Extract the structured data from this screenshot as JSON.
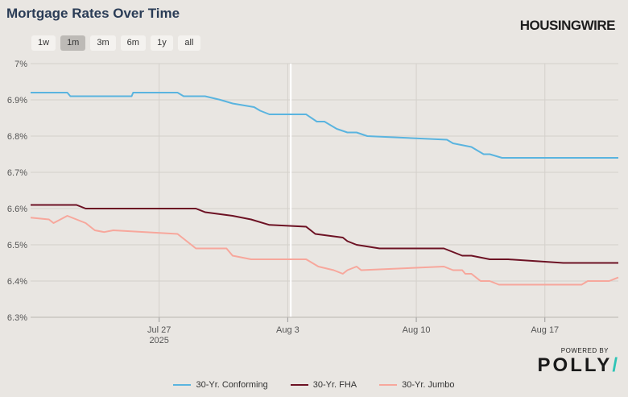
{
  "header": {
    "title": "Mortgage Rates Over Time",
    "brand": "HOUSINGWIRE"
  },
  "range_buttons": [
    {
      "label": "1w",
      "active": false
    },
    {
      "label": "1m",
      "active": true
    },
    {
      "label": "3m",
      "active": false
    },
    {
      "label": "6m",
      "active": false
    },
    {
      "label": "1y",
      "active": false
    },
    {
      "label": "all",
      "active": false
    }
  ],
  "footer": {
    "powered_by": "POWERED BY",
    "logo": "POLLY"
  },
  "chart_data": {
    "type": "line",
    "title": "Mortgage Rates Over Time",
    "ylim": [
      6.3,
      7.0
    ],
    "y_ticks": [
      {
        "value": 7.0,
        "label": "7%"
      },
      {
        "value": 6.9,
        "label": "6.9%"
      },
      {
        "value": 6.8,
        "label": "6.8%"
      },
      {
        "value": 6.7,
        "label": "6.7%"
      },
      {
        "value": 6.6,
        "label": "6.6%"
      },
      {
        "value": 6.5,
        "label": "6.5%"
      },
      {
        "value": 6.4,
        "label": "6.4%"
      },
      {
        "value": 6.3,
        "label": "6.3%"
      }
    ],
    "xlim": [
      "2025-07-20",
      "2025-08-21"
    ],
    "x_ticks": [
      {
        "date": "2025-07-27",
        "label": "Jul 27",
        "sublabel": "2025"
      },
      {
        "date": "2025-08-03",
        "label": "Aug 3",
        "sublabel": ""
      },
      {
        "date": "2025-08-10",
        "label": "Aug 10",
        "sublabel": ""
      },
      {
        "date": "2025-08-17",
        "label": "Aug 17",
        "sublabel": ""
      }
    ],
    "grid": true,
    "legend": "bottom",
    "series": [
      {
        "name": "30-Yr. Conforming",
        "color": "#5ab4df",
        "points": [
          [
            "2025-07-20",
            6.92
          ],
          [
            "2025-07-22",
            6.92
          ],
          [
            "2025-07-22T04",
            6.91
          ],
          [
            "2025-07-25T12",
            6.91
          ],
          [
            "2025-07-25T14",
            6.92
          ],
          [
            "2025-07-28",
            6.92
          ],
          [
            "2025-07-28T08",
            6.91
          ],
          [
            "2025-07-29T12",
            6.91
          ],
          [
            "2025-07-30T08",
            6.9
          ],
          [
            "2025-07-31",
            6.89
          ],
          [
            "2025-08-01T04",
            6.88
          ],
          [
            "2025-08-01T12",
            6.87
          ],
          [
            "2025-08-02",
            6.86
          ],
          [
            "2025-08-04",
            6.86
          ],
          [
            "2025-08-04T14",
            6.84
          ],
          [
            "2025-08-05",
            6.84
          ],
          [
            "2025-08-05T16",
            6.82
          ],
          [
            "2025-08-06T06",
            6.81
          ],
          [
            "2025-08-06T18",
            6.81
          ],
          [
            "2025-08-07T08",
            6.8
          ],
          [
            "2025-08-11T16",
            6.79
          ],
          [
            "2025-08-12",
            6.78
          ],
          [
            "2025-08-13",
            6.77
          ],
          [
            "2025-08-13T16",
            6.75
          ],
          [
            "2025-08-14",
            6.75
          ],
          [
            "2025-08-14T16",
            6.74
          ],
          [
            "2025-08-21",
            6.74
          ]
        ]
      },
      {
        "name": "30-Yr. FHA",
        "color": "#6d1224",
        "points": [
          [
            "2025-07-20",
            6.61
          ],
          [
            "2025-07-22T12",
            6.61
          ],
          [
            "2025-07-23",
            6.6
          ],
          [
            "2025-07-29",
            6.6
          ],
          [
            "2025-07-29T12",
            6.59
          ],
          [
            "2025-07-31",
            6.58
          ],
          [
            "2025-08-01",
            6.57
          ],
          [
            "2025-08-02",
            6.555
          ],
          [
            "2025-08-04",
            6.55
          ],
          [
            "2025-08-04T12",
            6.53
          ],
          [
            "2025-08-06",
            6.52
          ],
          [
            "2025-08-06T06",
            6.51
          ],
          [
            "2025-08-06T18",
            6.5
          ],
          [
            "2025-08-08",
            6.49
          ],
          [
            "2025-08-11T12",
            6.49
          ],
          [
            "2025-08-12",
            6.48
          ],
          [
            "2025-08-12T12",
            6.47
          ],
          [
            "2025-08-13",
            6.47
          ],
          [
            "2025-08-14",
            6.46
          ],
          [
            "2025-08-15",
            6.46
          ],
          [
            "2025-08-18",
            6.45
          ],
          [
            "2025-08-20",
            6.45
          ],
          [
            "2025-08-21",
            6.45
          ]
        ]
      },
      {
        "name": "30-Yr. Jumbo",
        "color": "#f7a79c",
        "points": [
          [
            "2025-07-20",
            6.575
          ],
          [
            "2025-07-21",
            6.57
          ],
          [
            "2025-07-21T06",
            6.56
          ],
          [
            "2025-07-22",
            6.58
          ],
          [
            "2025-07-23",
            6.56
          ],
          [
            "2025-07-23T12",
            6.54
          ],
          [
            "2025-07-24",
            6.535
          ],
          [
            "2025-07-24T12",
            6.54
          ],
          [
            "2025-07-28",
            6.53
          ],
          [
            "2025-07-28T12",
            6.51
          ],
          [
            "2025-07-29",
            6.49
          ],
          [
            "2025-07-30T16",
            6.49
          ],
          [
            "2025-07-31",
            6.47
          ],
          [
            "2025-08-01",
            6.46
          ],
          [
            "2025-08-04",
            6.46
          ],
          [
            "2025-08-04T16",
            6.44
          ],
          [
            "2025-08-05T12",
            6.43
          ],
          [
            "2025-08-06",
            6.42
          ],
          [
            "2025-08-06T06",
            6.43
          ],
          [
            "2025-08-06T18",
            6.44
          ],
          [
            "2025-08-07",
            6.43
          ],
          [
            "2025-08-11T12",
            6.44
          ],
          [
            "2025-08-12",
            6.43
          ],
          [
            "2025-08-12T12",
            6.43
          ],
          [
            "2025-08-12T16",
            6.42
          ],
          [
            "2025-08-13",
            6.42
          ],
          [
            "2025-08-13T12",
            6.4
          ],
          [
            "2025-08-14",
            6.4
          ],
          [
            "2025-08-14T12",
            6.39
          ],
          [
            "2025-08-19",
            6.39
          ],
          [
            "2025-08-19T08",
            6.4
          ],
          [
            "2025-08-20T12",
            6.4
          ],
          [
            "2025-08-21",
            6.41
          ]
        ]
      }
    ]
  }
}
